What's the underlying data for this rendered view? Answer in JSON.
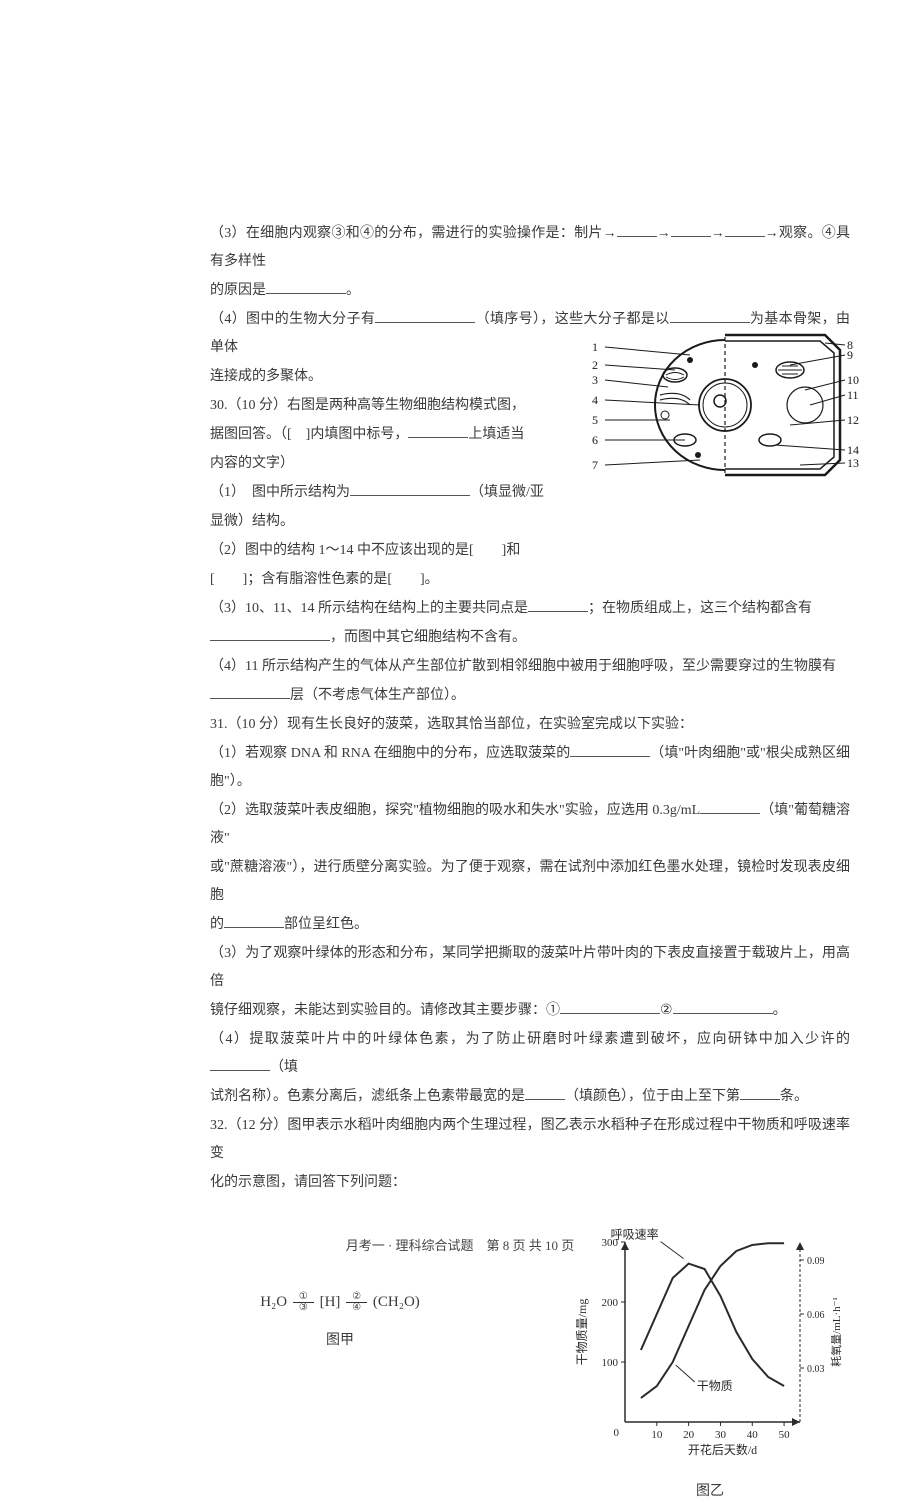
{
  "q29": {
    "p3a": "（3）在细胞内观察③和④的分布，需进行的实验操作是：制片→",
    "p3b": "→",
    "p3c": "→",
    "p3d": "→观察。④具有多样性",
    "p3e": "的原因是",
    "p3f": "。",
    "p4a": "（4）图中的生物大分子有",
    "p4b": "（填序号），这些大分子都是以",
    "p4c": "为基本骨架，由单体",
    "p4d": "连接成的多聚体。"
  },
  "q30": {
    "header": "30.（10 分）右图是两种高等生物细胞结构模式图，",
    "intro1": "据图回答。（[　]内填图中标号，",
    "intro1b": "上填适当",
    "intro2": "内容的文字）",
    "p1a": "（1）　图中所示结构为",
    "p1b": "（填显微/亚",
    "p1c": "显微）结构。",
    "p2a": "（2）图中的结构 1～14 中不应该出现的是[　　]和",
    "p2b": "[　　]；含有脂溶性色素的是[　　]。",
    "p3a": "（3）10、11、14 所示结构在结构上的主要共同点是",
    "p3b": "；在物质组成上，这三个结构都含有",
    "p3c": "，而图中其它细胞结构不含有。",
    "p4a": "（4）11 所示结构产生的气体从产生部位扩散到相邻细胞中被用于细胞呼吸，至少需要穿过的生物膜有",
    "p4b": "层（不考虑气体生产部位）。"
  },
  "q31": {
    "header": "31.（10 分）现有生长良好的菠菜，选取其恰当部位，在实验室完成以下实验：",
    "p1a": "（1）若观察 DNA 和 RNA 在细胞中的分布，应选取菠菜的",
    "p1b": "（填\"叶肉细胞\"或\"根尖成熟区细胞\"）。",
    "p2a": "（2）选取菠菜叶表皮细胞，探究\"植物细胞的吸水和失水\"实验，应选用 0.3g/mL",
    "p2b": "（填\"葡萄糖溶液\"",
    "p2c": "或\"蔗糖溶液\"），进行质壁分离实验。为了便于观察，需在试剂中添加红色墨水处理，镜检时发现表皮细胞",
    "p2d": "的",
    "p2e": "部位呈红色。",
    "p3a": "（3）为了观察叶绿体的形态和分布，某同学把撕取的菠菜叶片带叶肉的下表皮直接置于载玻片上，用高倍",
    "p3b": "镜仔细观察，未能达到实验目的。请修改其主要步骤：①",
    "p3c": "②",
    "p3d": "。",
    "p4a": "（4）提取菠菜叶片中的叶绿体色素，为了防止研磨时叶绿素遭到破坏，应向研钵中加入少许的",
    "p4b": "（填",
    "p4c": "试剂名称）。色素分离后，滤纸条上色素带最宽的是",
    "p4d": "（填颜色），位于由上至下第",
    "p4e": "条。"
  },
  "q32": {
    "header1": "32.（12 分）图甲表示水稻叶肉细胞内两个生理过程，图乙表示水稻种子在形成过程中干物质和呼吸速率变",
    "header2": "化的示意图，请回答下列问题：",
    "formula": {
      "h2o": "H₂O",
      "arrow1_top": "①",
      "arrow1_bot": "③",
      "mid": "[H]",
      "arrow2_top": "②",
      "arrow2_bot": "④",
      "ch2o": "(CH₂O)",
      "caption": "图甲"
    },
    "chart": {
      "y_left_label": "干物质量/mg",
      "y_left_max": 300,
      "y_left_ticks": [
        100,
        200,
        300
      ],
      "y_right_label": "耗氧量/mL·h⁻¹",
      "y_right_ticks": [
        0.03,
        0.06,
        0.09
      ],
      "x_label": "开花后天数/d",
      "x_ticks": [
        10,
        20,
        30,
        40,
        50
      ],
      "curve1_label": "呼吸速率",
      "curve2_label": "干物质",
      "caption": "图乙",
      "line_color": "#2a2a2a",
      "bg": "#ffffff",
      "dry_mass_points": [
        [
          5,
          40
        ],
        [
          10,
          60
        ],
        [
          15,
          100
        ],
        [
          20,
          160
        ],
        [
          25,
          220
        ],
        [
          30,
          260
        ],
        [
          35,
          285
        ],
        [
          40,
          295
        ],
        [
          45,
          298
        ],
        [
          50,
          298
        ]
      ],
      "resp_rate_points": [
        [
          5,
          0.04
        ],
        [
          10,
          0.06
        ],
        [
          15,
          0.08
        ],
        [
          20,
          0.088
        ],
        [
          25,
          0.085
        ],
        [
          30,
          0.07
        ],
        [
          35,
          0.05
        ],
        [
          40,
          0.035
        ],
        [
          45,
          0.025
        ],
        [
          50,
          0.02
        ]
      ]
    }
  },
  "cell_diagram": {
    "labels_left": [
      "1",
      "2",
      "3",
      "4",
      "5",
      "6",
      "7"
    ],
    "labels_right": [
      "8",
      "9",
      "10",
      "11",
      "12",
      "14",
      "13"
    ],
    "stroke": "#1a1a1a"
  },
  "footer": "月考一 · 理科综合试题　第 8 页 共 10 页"
}
